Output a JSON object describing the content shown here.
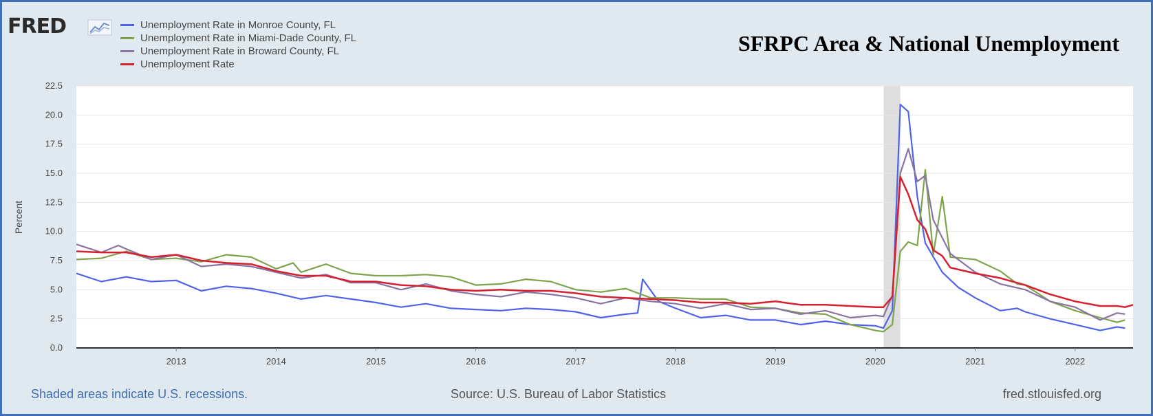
{
  "logo": {
    "text": "FRED"
  },
  "footer": {
    "recession_note": "Shaded areas indicate U.S. recessions.",
    "source": "Source: U.S. Bureau of Labor Statistics",
    "site": "fred.stlouisfed.org"
  },
  "chart_data": {
    "type": "line",
    "title": "SFRPC Area & National Unemployment",
    "xlabel": "",
    "ylabel": "Percent",
    "xlim": [
      2012.0,
      2022.58
    ],
    "ylim": [
      0,
      22.5
    ],
    "y_ticks": [
      "0.0",
      "2.5",
      "5.0",
      "7.5",
      "10.0",
      "12.5",
      "15.0",
      "17.5",
      "20.0",
      "22.5"
    ],
    "x_ticks": [
      "2013",
      "2014",
      "2015",
      "2016",
      "2017",
      "2018",
      "2019",
      "2020",
      "2021",
      "2022"
    ],
    "grid": true,
    "legend_position": "top-left",
    "recession_shading": [
      [
        2020.083,
        2020.25
      ]
    ],
    "series": [
      {
        "name": "Unemployment Rate in Monroe County, FL",
        "color": "#4f63e8",
        "points": [
          [
            2012.0,
            6.4
          ],
          [
            2012.25,
            5.7
          ],
          [
            2012.5,
            6.1
          ],
          [
            2012.75,
            5.7
          ],
          [
            2013.0,
            5.8
          ],
          [
            2013.25,
            4.9
          ],
          [
            2013.5,
            5.3
          ],
          [
            2013.75,
            5.1
          ],
          [
            2014.0,
            4.7
          ],
          [
            2014.25,
            4.2
          ],
          [
            2014.5,
            4.5
          ],
          [
            2014.75,
            4.2
          ],
          [
            2015.0,
            3.9
          ],
          [
            2015.25,
            3.5
          ],
          [
            2015.5,
            3.8
          ],
          [
            2015.75,
            3.4
          ],
          [
            2016.0,
            3.3
          ],
          [
            2016.25,
            3.2
          ],
          [
            2016.5,
            3.4
          ],
          [
            2016.75,
            3.3
          ],
          [
            2017.0,
            3.1
          ],
          [
            2017.25,
            2.6
          ],
          [
            2017.5,
            2.9
          ],
          [
            2017.62,
            3.0
          ],
          [
            2017.67,
            5.9
          ],
          [
            2017.83,
            4.0
          ],
          [
            2018.0,
            3.4
          ],
          [
            2018.25,
            2.6
          ],
          [
            2018.5,
            2.8
          ],
          [
            2018.75,
            2.4
          ],
          [
            2019.0,
            2.4
          ],
          [
            2019.25,
            2.0
          ],
          [
            2019.5,
            2.3
          ],
          [
            2019.75,
            2.0
          ],
          [
            2020.0,
            1.9
          ],
          [
            2020.08,
            1.7
          ],
          [
            2020.17,
            3.2
          ],
          [
            2020.25,
            20.9
          ],
          [
            2020.33,
            20.3
          ],
          [
            2020.42,
            13.0
          ],
          [
            2020.5,
            9.0
          ],
          [
            2020.67,
            6.5
          ],
          [
            2020.83,
            5.2
          ],
          [
            2021.0,
            4.3
          ],
          [
            2021.25,
            3.2
          ],
          [
            2021.42,
            3.4
          ],
          [
            2021.5,
            3.1
          ],
          [
            2021.75,
            2.5
          ],
          [
            2022.0,
            2.0
          ],
          [
            2022.25,
            1.5
          ],
          [
            2022.42,
            1.8
          ],
          [
            2022.5,
            1.7
          ]
        ]
      },
      {
        "name": "Unemployment Rate in Miami-Dade County, FL",
        "color": "#7ea34c",
        "points": [
          [
            2012.0,
            7.6
          ],
          [
            2012.25,
            7.7
          ],
          [
            2012.5,
            8.3
          ],
          [
            2012.75,
            7.6
          ],
          [
            2013.0,
            7.7
          ],
          [
            2013.25,
            7.4
          ],
          [
            2013.5,
            8.0
          ],
          [
            2013.75,
            7.8
          ],
          [
            2014.0,
            6.8
          ],
          [
            2014.17,
            7.3
          ],
          [
            2014.25,
            6.5
          ],
          [
            2014.5,
            7.2
          ],
          [
            2014.75,
            6.4
          ],
          [
            2015.0,
            6.2
          ],
          [
            2015.25,
            6.2
          ],
          [
            2015.5,
            6.3
          ],
          [
            2015.75,
            6.1
          ],
          [
            2016.0,
            5.4
          ],
          [
            2016.25,
            5.5
          ],
          [
            2016.5,
            5.9
          ],
          [
            2016.75,
            5.7
          ],
          [
            2017.0,
            5.0
          ],
          [
            2017.25,
            4.8
          ],
          [
            2017.5,
            5.1
          ],
          [
            2017.75,
            4.3
          ],
          [
            2018.0,
            4.3
          ],
          [
            2018.25,
            4.2
          ],
          [
            2018.5,
            4.2
          ],
          [
            2018.75,
            3.5
          ],
          [
            2019.0,
            3.4
          ],
          [
            2019.25,
            3.0
          ],
          [
            2019.5,
            2.9
          ],
          [
            2019.75,
            2.0
          ],
          [
            2020.0,
            1.5
          ],
          [
            2020.08,
            1.4
          ],
          [
            2020.17,
            2.0
          ],
          [
            2020.25,
            8.3
          ],
          [
            2020.33,
            9.1
          ],
          [
            2020.42,
            8.8
          ],
          [
            2020.5,
            15.3
          ],
          [
            2020.58,
            8.0
          ],
          [
            2020.67,
            13.0
          ],
          [
            2020.75,
            7.8
          ],
          [
            2021.0,
            7.6
          ],
          [
            2021.25,
            6.6
          ],
          [
            2021.42,
            5.5
          ],
          [
            2021.5,
            5.4
          ],
          [
            2021.75,
            4.0
          ],
          [
            2022.0,
            3.2
          ],
          [
            2022.25,
            2.6
          ],
          [
            2022.42,
            2.2
          ],
          [
            2022.5,
            2.4
          ]
        ]
      },
      {
        "name": "Unemployment Rate in Broward County, FL",
        "color": "#8873a3",
        "points": [
          [
            2012.0,
            8.9
          ],
          [
            2012.25,
            8.2
          ],
          [
            2012.42,
            8.8
          ],
          [
            2012.5,
            8.5
          ],
          [
            2012.75,
            7.6
          ],
          [
            2013.0,
            8.0
          ],
          [
            2013.25,
            7.0
          ],
          [
            2013.5,
            7.2
          ],
          [
            2013.75,
            7.0
          ],
          [
            2014.0,
            6.5
          ],
          [
            2014.25,
            6.0
          ],
          [
            2014.5,
            6.3
          ],
          [
            2014.75,
            5.6
          ],
          [
            2015.0,
            5.6
          ],
          [
            2015.25,
            5.0
          ],
          [
            2015.5,
            5.5
          ],
          [
            2015.75,
            4.9
          ],
          [
            2016.0,
            4.6
          ],
          [
            2016.25,
            4.4
          ],
          [
            2016.5,
            4.8
          ],
          [
            2016.75,
            4.6
          ],
          [
            2017.0,
            4.3
          ],
          [
            2017.25,
            3.8
          ],
          [
            2017.5,
            4.3
          ],
          [
            2017.75,
            4.0
          ],
          [
            2018.0,
            3.8
          ],
          [
            2018.25,
            3.4
          ],
          [
            2018.5,
            3.8
          ],
          [
            2018.75,
            3.3
          ],
          [
            2019.0,
            3.4
          ],
          [
            2019.25,
            2.9
          ],
          [
            2019.5,
            3.2
          ],
          [
            2019.75,
            2.6
          ],
          [
            2020.0,
            2.8
          ],
          [
            2020.08,
            2.7
          ],
          [
            2020.17,
            4.5
          ],
          [
            2020.25,
            15.0
          ],
          [
            2020.33,
            17.1
          ],
          [
            2020.42,
            14.3
          ],
          [
            2020.5,
            14.8
          ],
          [
            2020.58,
            11.0
          ],
          [
            2020.75,
            8.1
          ],
          [
            2021.0,
            6.5
          ],
          [
            2021.25,
            5.5
          ],
          [
            2021.5,
            5.0
          ],
          [
            2021.75,
            4.0
          ],
          [
            2022.0,
            3.5
          ],
          [
            2022.25,
            2.4
          ],
          [
            2022.42,
            3.0
          ],
          [
            2022.5,
            2.9
          ]
        ]
      },
      {
        "name": "Unemployment Rate",
        "color": "#d52030",
        "points": [
          [
            2012.0,
            8.3
          ],
          [
            2012.25,
            8.2
          ],
          [
            2012.5,
            8.2
          ],
          [
            2012.75,
            7.8
          ],
          [
            2013.0,
            8.0
          ],
          [
            2013.25,
            7.5
          ],
          [
            2013.5,
            7.3
          ],
          [
            2013.75,
            7.2
          ],
          [
            2014.0,
            6.6
          ],
          [
            2014.25,
            6.2
          ],
          [
            2014.5,
            6.2
          ],
          [
            2014.75,
            5.7
          ],
          [
            2015.0,
            5.7
          ],
          [
            2015.25,
            5.4
          ],
          [
            2015.5,
            5.3
          ],
          [
            2015.75,
            5.0
          ],
          [
            2016.0,
            4.9
          ],
          [
            2016.25,
            5.0
          ],
          [
            2016.5,
            4.9
          ],
          [
            2016.75,
            4.9
          ],
          [
            2017.0,
            4.7
          ],
          [
            2017.25,
            4.4
          ],
          [
            2017.5,
            4.3
          ],
          [
            2017.75,
            4.2
          ],
          [
            2018.0,
            4.1
          ],
          [
            2018.25,
            3.9
          ],
          [
            2018.5,
            3.9
          ],
          [
            2018.75,
            3.8
          ],
          [
            2019.0,
            4.0
          ],
          [
            2019.25,
            3.7
          ],
          [
            2019.5,
            3.7
          ],
          [
            2019.75,
            3.6
          ],
          [
            2020.0,
            3.5
          ],
          [
            2020.08,
            3.5
          ],
          [
            2020.17,
            4.4
          ],
          [
            2020.25,
            14.7
          ],
          [
            2020.33,
            13.2
          ],
          [
            2020.42,
            11.0
          ],
          [
            2020.5,
            10.2
          ],
          [
            2020.58,
            8.4
          ],
          [
            2020.67,
            7.9
          ],
          [
            2020.75,
            6.9
          ],
          [
            2021.0,
            6.4
          ],
          [
            2021.25,
            6.0
          ],
          [
            2021.5,
            5.4
          ],
          [
            2021.75,
            4.6
          ],
          [
            2022.0,
            4.0
          ],
          [
            2022.25,
            3.6
          ],
          [
            2022.42,
            3.6
          ],
          [
            2022.5,
            3.5
          ],
          [
            2022.58,
            3.7
          ]
        ]
      }
    ]
  }
}
